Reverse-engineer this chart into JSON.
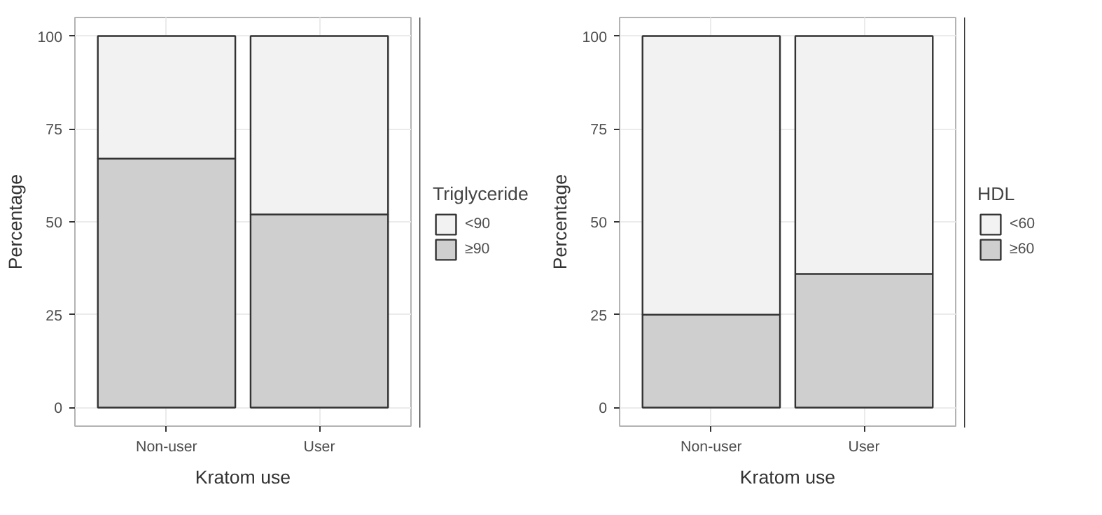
{
  "chart_data": [
    {
      "type": "bar",
      "stacked": true,
      "categories": [
        "Non-user",
        "User"
      ],
      "xlabel": "Kratom use",
      "ylabel": "Percentage",
      "legend_title": "Triglyceride",
      "legend": "right",
      "grid": true,
      "ylim": [
        -5,
        105
      ],
      "yticks": [
        0,
        25,
        50,
        75,
        100
      ],
      "series": [
        {
          "name": "≥90",
          "color": "#cfcfcf",
          "values": [
            67,
            52
          ]
        },
        {
          "name": "<90",
          "color": "#f2f2f2",
          "values": [
            33,
            48
          ]
        }
      ]
    },
    {
      "type": "bar",
      "stacked": true,
      "categories": [
        "Non-user",
        "User"
      ],
      "xlabel": "Kratom use",
      "ylabel": "Percentage",
      "legend_title": "HDL",
      "legend": "right",
      "grid": true,
      "ylim": [
        -5,
        105
      ],
      "yticks": [
        0,
        25,
        50,
        75,
        100
      ],
      "series": [
        {
          "name": "≥60",
          "color": "#cfcfcf",
          "values": [
            25,
            36
          ]
        },
        {
          "name": "<60",
          "color": "#f2f2f2",
          "values": [
            75,
            64
          ]
        }
      ]
    }
  ]
}
